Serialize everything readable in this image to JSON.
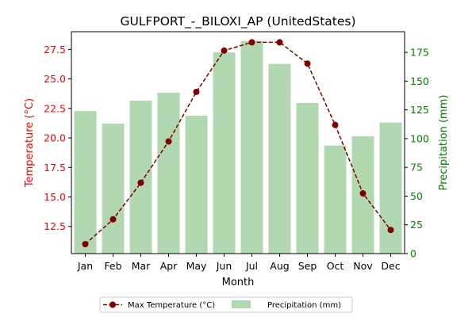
{
  "chart_data": {
    "type": "bar+line",
    "title": "GULFPORT_-_BILOXI_AP (UnitedStates)",
    "xlabel": "Month",
    "categories": [
      "Jan",
      "Feb",
      "Mar",
      "Apr",
      "May",
      "Jun",
      "Jul",
      "Aug",
      "Sep",
      "Oct",
      "Nov",
      "Dec"
    ],
    "left_axis": {
      "label": "Temperature (°C)",
      "color": "#ff0000",
      "ylim": [
        10.2,
        29.0
      ],
      "ticks": [
        12.5,
        15.0,
        17.5,
        20.0,
        22.5,
        25.0,
        27.5
      ],
      "tick_labels": [
        "12.5",
        "15.0",
        "17.5",
        "20.0",
        "22.5",
        "25.0",
        "27.5"
      ]
    },
    "right_axis": {
      "label": "Precipitation (mm)",
      "color": "#008000",
      "ylim": [
        0,
        193
      ],
      "ticks": [
        0,
        25,
        50,
        75,
        100,
        125,
        150,
        175
      ],
      "tick_labels": [
        "0",
        "25",
        "50",
        "75",
        "100",
        "125",
        "150",
        "175"
      ]
    },
    "series": [
      {
        "name": "Max Temperature (°C)",
        "type": "line",
        "axis": "left",
        "color": "#800000",
        "values": [
          11.0,
          13.1,
          16.2,
          19.7,
          23.9,
          27.4,
          28.1,
          28.1,
          26.3,
          21.1,
          15.3,
          12.2
        ]
      },
      {
        "name": "Precipitation (mm)",
        "type": "bar",
        "axis": "right",
        "color": "#b2d8b2",
        "values": [
          124,
          113,
          133,
          140,
          120,
          175,
          185,
          165,
          131,
          94,
          102,
          114
        ]
      }
    ],
    "legend": {
      "placement": "bottom-center"
    },
    "grid": false
  }
}
